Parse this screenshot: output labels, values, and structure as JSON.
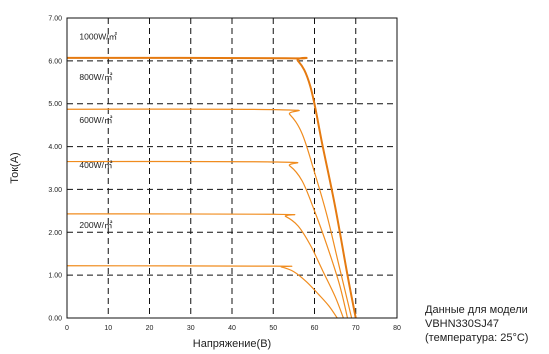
{
  "chart_data": {
    "type": "line",
    "xlabel": "Напряжение(В)",
    "ylabel": "Ток(A)",
    "xlim": [
      0,
      80
    ],
    "ylim": [
      0,
      7
    ],
    "x_ticks": [
      "0",
      "10",
      "20",
      "30",
      "40",
      "50",
      "60",
      "70",
      "80"
    ],
    "y_ticks": [
      "0.00",
      "1.00",
      "2.00",
      "3.00",
      "4.00",
      "5.00",
      "6.00",
      "7.00"
    ],
    "grid": true,
    "series": [
      {
        "name": "1000W/㎡",
        "isc": 6.07,
        "voc": 70.0,
        "knee": 53.0,
        "color": "#e57a10",
        "bold": true,
        "x": [
          0,
          53,
          56,
          59,
          62,
          65,
          68,
          70
        ],
        "y": [
          6.07,
          6.06,
          6.0,
          5.4,
          4.0,
          2.6,
          1.0,
          0
        ]
      },
      {
        "name": "800W/㎡",
        "isc": 4.87,
        "voc": 69.0,
        "knee": 51.5,
        "color": "#f08c1e",
        "bold": false,
        "x": [
          0,
          51.5,
          54,
          57,
          60,
          63,
          66,
          69
        ],
        "y": [
          4.87,
          4.86,
          4.75,
          4.3,
          3.4,
          2.4,
          1.2,
          0
        ]
      },
      {
        "name": "600W/㎡",
        "isc": 3.65,
        "voc": 68.0,
        "knee": 51.0,
        "color": "#f08c1e",
        "bold": false,
        "x": [
          0,
          51,
          54,
          57,
          60,
          63,
          66,
          68
        ],
        "y": [
          3.65,
          3.64,
          3.55,
          3.2,
          2.5,
          1.7,
          0.8,
          0
        ]
      },
      {
        "name": "400W/㎡",
        "isc": 2.43,
        "voc": 67.0,
        "knee": 50.5,
        "color": "#f08c1e",
        "bold": false,
        "x": [
          0,
          50.5,
          53,
          56,
          59,
          62,
          65,
          67
        ],
        "y": [
          2.43,
          2.42,
          2.37,
          2.15,
          1.7,
          1.1,
          0.5,
          0
        ]
      },
      {
        "name": "200W/㎡",
        "isc": 1.22,
        "voc": 65.5,
        "knee": 50.0,
        "color": "#f08c1e",
        "bold": false,
        "x": [
          0,
          50,
          52,
          55,
          58,
          61,
          63.5,
          65.5
        ],
        "y": [
          1.22,
          1.21,
          1.19,
          1.08,
          0.85,
          0.55,
          0.28,
          0
        ]
      }
    ],
    "label_y": [
      6.5,
      5.55,
      4.55,
      3.5,
      2.1
    ]
  },
  "note": {
    "line1": "Данные для модели",
    "line2": "VBHN330SJ47",
    "line3": "(температура: 25°C)"
  }
}
